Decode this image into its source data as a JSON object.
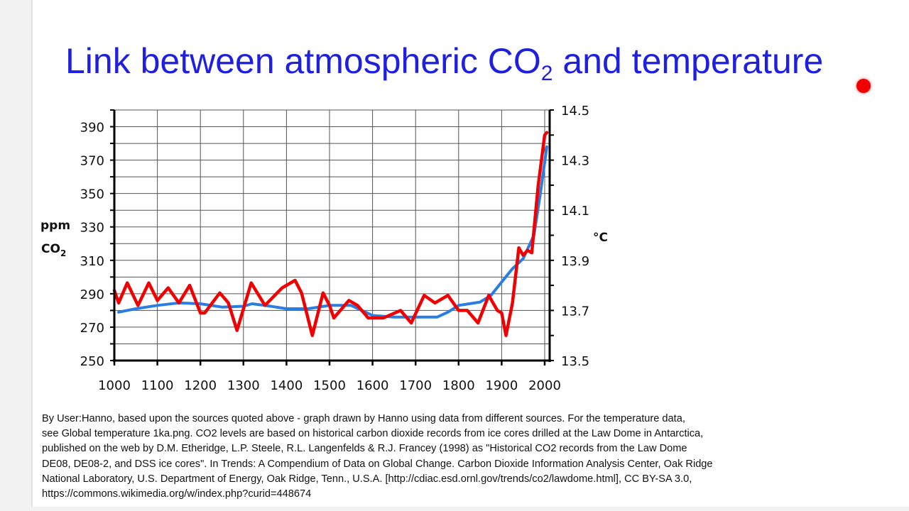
{
  "slide": {
    "title_main": "Link between atmospheric CO",
    "title_sub": "2",
    "title_end": " and temperature",
    "accent_color": "#1f1fe0",
    "pointer_color": "#f00000",
    "caption_lines": [
      "By User:Hanno, based upon the sources quoted above - graph drawn by Hanno using data from different sources. For the temperature data,",
      "see Global temperature 1ka.png. CO2 levels are based on historical carbon dioxide records from ice cores drilled at the Law Dome in Antarctica,",
      "published on the web by D.M. Etheridge, L.P. Steele, R.L. Langenfelds & R.J. Francey (1998) as \"Historical CO2 records from the Law Dome",
      "DE08, DE08-2, and DSS ice cores\". In Trends: A Compendium of Data on Global Change. Carbon Dioxide Information Analysis Center, Oak Ridge",
      "National Laboratory, U.S. Department of Energy, Oak Ridge, Tenn., U.S.A. [http://cdiac.esd.ornl.gov/trends/co2/lawdome.html], CC BY-SA 3.0,",
      "https://commons.wikimedia.org/w/index.php?curid=448674"
    ]
  },
  "chart_data": {
    "type": "line",
    "grid": true,
    "xlim": [
      1000,
      2000
    ],
    "x_ticks": [
      "1000",
      "1100",
      "1200",
      "1300",
      "1400",
      "1500",
      "1600",
      "1700",
      "1800",
      "1900",
      "2000"
    ],
    "ylabel_left_1": "ppm",
    "ylabel_left_2": "CO",
    "ylabel_left_sub": "2",
    "ylim_left": [
      250,
      400
    ],
    "y_ticks_left": [
      "250",
      "270",
      "290",
      "310",
      "330",
      "350",
      "370",
      "390"
    ],
    "ylabel_right": "°C",
    "ylim_right": [
      13.5,
      14.5
    ],
    "y_ticks_right": [
      "13.5",
      "13.7",
      "13.9",
      "14.1",
      "14.3",
      "14.5"
    ],
    "series": [
      {
        "axis": "left",
        "color": "#2a7de1",
        "x": [
          1010,
          1050,
          1100,
          1150,
          1200,
          1250,
          1300,
          1320,
          1350,
          1400,
          1450,
          1500,
          1550,
          1600,
          1650,
          1700,
          1750,
          1775,
          1800,
          1850,
          1875,
          1900,
          1925,
          1950,
          1975,
          1990,
          2005
        ],
        "y": [
          279,
          281,
          283,
          284.5,
          284,
          282,
          282.5,
          284,
          283,
          281,
          281,
          283,
          283,
          277,
          276,
          276,
          276,
          279,
          283,
          285,
          289,
          297,
          305,
          311,
          325,
          350,
          378
        ]
      },
      {
        "axis": "right",
        "color": "#f00000",
        "x": [
          1000,
          1010,
          1030,
          1055,
          1080,
          1100,
          1125,
          1150,
          1175,
          1200,
          1210,
          1245,
          1265,
          1285,
          1318,
          1350,
          1390,
          1420,
          1435,
          1460,
          1485,
          1500,
          1510,
          1545,
          1565,
          1590,
          1625,
          1665,
          1690,
          1720,
          1745,
          1775,
          1800,
          1820,
          1845,
          1870,
          1890,
          1900,
          1910,
          1925,
          1940,
          1950,
          1960,
          1970,
          1985,
          2000,
          2005
        ],
        "y": [
          13.78,
          13.73,
          13.81,
          13.72,
          13.81,
          13.74,
          13.79,
          13.73,
          13.8,
          13.69,
          13.69,
          13.77,
          13.73,
          13.62,
          13.81,
          13.72,
          13.79,
          13.82,
          13.77,
          13.6,
          13.77,
          13.72,
          13.67,
          13.74,
          13.72,
          13.67,
          13.67,
          13.7,
          13.65,
          13.76,
          13.73,
          13.76,
          13.7,
          13.7,
          13.65,
          13.76,
          13.7,
          13.69,
          13.6,
          13.73,
          13.95,
          13.92,
          13.94,
          13.93,
          14.2,
          14.4,
          14.41
        ]
      }
    ]
  }
}
